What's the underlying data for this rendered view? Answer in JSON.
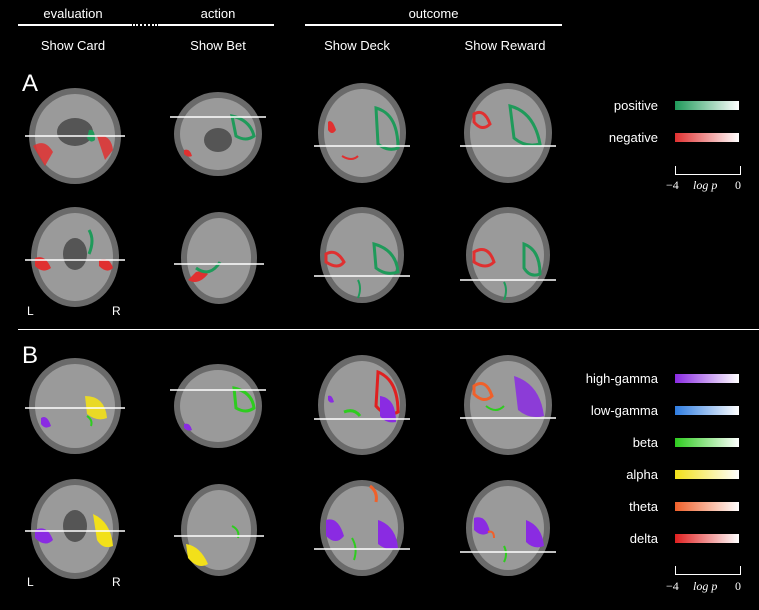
{
  "header": {
    "evaluation": "evaluation",
    "action": "action",
    "outcome": "outcome"
  },
  "columns": [
    "Show Card",
    "Show Bet",
    "Show Deck",
    "Show Reward"
  ],
  "panel_a": {
    "letter": "A",
    "left_label": "L",
    "right_label": "R",
    "legend": [
      {
        "label": "positive",
        "color": "#1f9a5a"
      },
      {
        "label": "negative",
        "color": "#e03030"
      }
    ],
    "scale": {
      "min": "−4",
      "mid": "log p",
      "max": "0"
    }
  },
  "panel_b": {
    "letter": "B",
    "left_label": "L",
    "right_label": "R",
    "legend": [
      {
        "label": "high-gamma",
        "color": "#8a2be2"
      },
      {
        "label": "low-gamma",
        "color": "#2f7de1"
      },
      {
        "label": "beta",
        "color": "#2ecc1f"
      },
      {
        "label": "alpha",
        "color": "#f2e01a"
      },
      {
        "label": "theta",
        "color": "#f0602a"
      },
      {
        "label": "delta",
        "color": "#e02020"
      }
    ],
    "scale": {
      "min": "−4",
      "mid": "log p",
      "max": "0"
    }
  }
}
